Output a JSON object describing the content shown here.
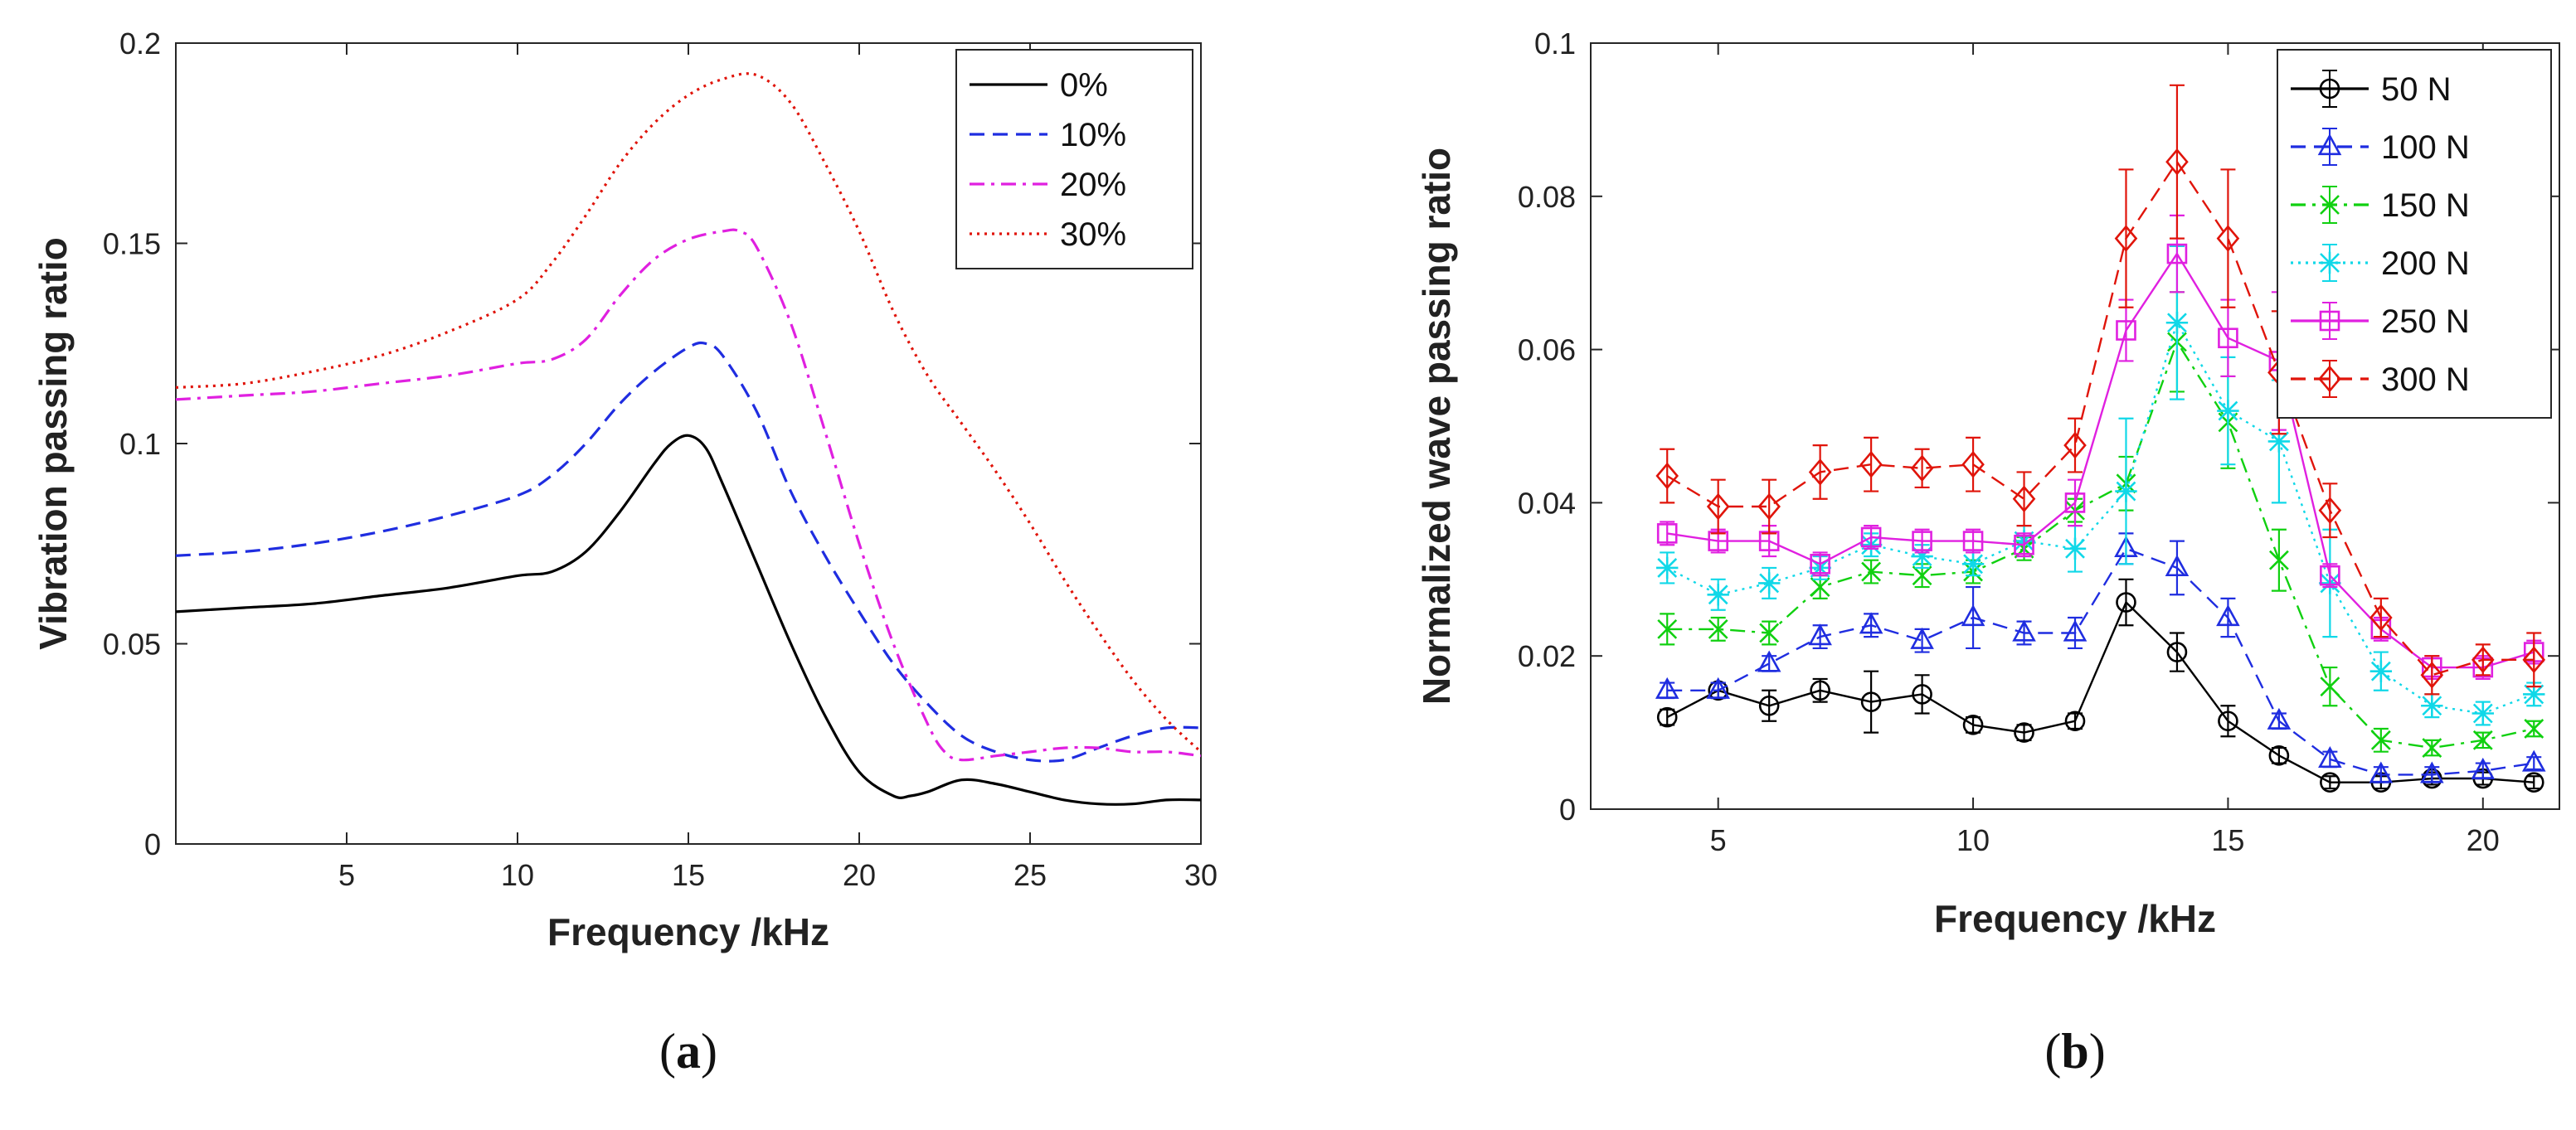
{
  "chart_data": [
    {
      "type": "line",
      "panel_label": "a",
      "title": "",
      "xlabel": "Frequency /kHz",
      "ylabel": "Vibration passing ratio",
      "xlim": [
        0,
        30
      ],
      "ylim": [
        0,
        0.2
      ],
      "xticks": [
        "5",
        "10",
        "15",
        "20",
        "25",
        "30"
      ],
      "yticks": [
        "0",
        "0.05",
        "0.1",
        "0.15",
        "0.2"
      ],
      "grid": false,
      "legend_position": "top-right",
      "series": [
        {
          "name": "0%",
          "color": "#000000",
          "style": "solid",
          "x": [
            0,
            2,
            4,
            6,
            8,
            10,
            11,
            12,
            13,
            14,
            14.5,
            15,
            15.5,
            16,
            17,
            18,
            19,
            20,
            21,
            21.5,
            22,
            23,
            24,
            25,
            26,
            27,
            28,
            29,
            30
          ],
          "y": [
            0.058,
            0.059,
            0.06,
            0.062,
            0.064,
            0.067,
            0.068,
            0.073,
            0.083,
            0.095,
            0.1,
            0.102,
            0.099,
            0.09,
            0.07,
            0.05,
            0.032,
            0.018,
            0.012,
            0.012,
            0.013,
            0.016,
            0.015,
            0.013,
            0.011,
            0.01,
            0.01,
            0.011,
            0.011
          ]
        },
        {
          "name": "10%",
          "color": "#1f2de0",
          "style": "dashed",
          "x": [
            0,
            2,
            4,
            6,
            8,
            10,
            11,
            12,
            13,
            14,
            15,
            15.5,
            16,
            17,
            18,
            19,
            20,
            21,
            22,
            23,
            24,
            25,
            26,
            27,
            28,
            29,
            30
          ],
          "y": [
            0.072,
            0.073,
            0.075,
            0.078,
            0.082,
            0.087,
            0.092,
            0.1,
            0.11,
            0.118,
            0.124,
            0.125,
            0.122,
            0.108,
            0.088,
            0.072,
            0.058,
            0.045,
            0.035,
            0.027,
            0.023,
            0.021,
            0.021,
            0.024,
            0.027,
            0.029,
            0.029
          ]
        },
        {
          "name": "20%",
          "color": "#e020e0",
          "style": "dashdot",
          "x": [
            0,
            2,
            4,
            6,
            8,
            10,
            11,
            12,
            13,
            14,
            15,
            16,
            16.5,
            17,
            18,
            19,
            20,
            21,
            22,
            22.5,
            23,
            24,
            25,
            26,
            27,
            28,
            29,
            30
          ],
          "y": [
            0.111,
            0.112,
            0.113,
            0.115,
            0.117,
            0.12,
            0.121,
            0.126,
            0.137,
            0.146,
            0.151,
            0.153,
            0.153,
            0.149,
            0.13,
            0.103,
            0.075,
            0.05,
            0.03,
            0.023,
            0.021,
            0.022,
            0.023,
            0.024,
            0.024,
            0.023,
            0.023,
            0.022
          ]
        },
        {
          "name": "30%",
          "color": "#e0140a",
          "style": "dotted",
          "x": [
            0,
            2,
            4,
            6,
            8,
            10,
            11,
            12,
            13,
            14,
            15,
            16,
            17,
            18,
            19,
            20,
            21,
            22,
            23,
            24,
            25,
            26,
            27,
            28,
            29,
            30
          ],
          "y": [
            0.114,
            0.115,
            0.118,
            0.122,
            0.128,
            0.136,
            0.145,
            0.157,
            0.17,
            0.18,
            0.187,
            0.191,
            0.192,
            0.185,
            0.17,
            0.153,
            0.133,
            0.117,
            0.105,
            0.093,
            0.08,
            0.066,
            0.053,
            0.041,
            0.031,
            0.023
          ]
        }
      ]
    },
    {
      "type": "line",
      "panel_label": "b",
      "title": "",
      "xlabel": "Frequency /kHz",
      "ylabel": "Normalized wave passing ratio",
      "xlim": [
        2.5,
        21.5
      ],
      "ylim": [
        0,
        0.1
      ],
      "xticks": [
        "5",
        "10",
        "15",
        "20"
      ],
      "yticks": [
        "0",
        "0.02",
        "0.04",
        "0.06",
        "0.08",
        "0.1"
      ],
      "grid": false,
      "legend_position": "top-right",
      "x": [
        4,
        5,
        6,
        7,
        8,
        9,
        10,
        11,
        12,
        13,
        14,
        15,
        16,
        17,
        18,
        19,
        20,
        21
      ],
      "series": [
        {
          "name": "50 N",
          "color": "#000000",
          "style": "solid",
          "marker": "circle",
          "values": [
            0.012,
            0.0155,
            0.0135,
            0.0155,
            0.014,
            0.015,
            0.011,
            0.01,
            0.0115,
            0.027,
            0.0205,
            0.0115,
            0.007,
            0.0035,
            0.0035,
            0.004,
            0.004,
            0.0035
          ],
          "errors": [
            0.001,
            0.001,
            0.002,
            0.0015,
            0.004,
            0.0025,
            0.001,
            0.001,
            0.001,
            0.003,
            0.0025,
            0.002,
            0.001,
            0.0008,
            0.0008,
            0.0008,
            0.0008,
            0.0008
          ]
        },
        {
          "name": "100 N",
          "color": "#1f2de0",
          "style": "dashed",
          "marker": "triangle",
          "values": [
            0.0155,
            0.0155,
            0.019,
            0.0225,
            0.024,
            0.022,
            0.025,
            0.023,
            0.023,
            0.034,
            0.0315,
            0.025,
            0.0115,
            0.0065,
            0.0045,
            0.0045,
            0.005,
            0.006
          ],
          "errors": [
            0.001,
            0.001,
            0.001,
            0.0015,
            0.0015,
            0.0015,
            0.004,
            0.0015,
            0.002,
            0.002,
            0.0035,
            0.0025,
            0.001,
            0.001,
            0.001,
            0.001,
            0.001,
            0.0008
          ]
        },
        {
          "name": "150 N",
          "color": "#10d010",
          "style": "dashdot",
          "marker": "x",
          "values": [
            0.0235,
            0.0235,
            0.023,
            0.029,
            0.031,
            0.0305,
            0.031,
            0.034,
            0.039,
            0.0425,
            0.061,
            0.0505,
            0.0325,
            0.016,
            0.009,
            0.008,
            0.009,
            0.0105
          ],
          "errors": [
            0.002,
            0.0015,
            0.0015,
            0.0015,
            0.0015,
            0.0015,
            0.0015,
            0.0015,
            0.0015,
            0.0035,
            0.0065,
            0.006,
            0.004,
            0.0025,
            0.0015,
            0.001,
            0.001,
            0.001
          ]
        },
        {
          "name": "200 N",
          "color": "#10d8e8",
          "style": "dotted",
          "marker": "star",
          "values": [
            0.0315,
            0.028,
            0.0295,
            0.0315,
            0.0345,
            0.033,
            0.032,
            0.035,
            0.034,
            0.0415,
            0.0635,
            0.052,
            0.048,
            0.0295,
            0.018,
            0.0135,
            0.0125,
            0.015
          ],
          "errors": [
            0.002,
            0.002,
            0.002,
            0.0015,
            0.0015,
            0.0015,
            0.0015,
            0.002,
            0.003,
            0.0095,
            0.01,
            0.007,
            0.008,
            0.007,
            0.0025,
            0.0015,
            0.0015,
            0.0015
          ]
        },
        {
          "name": "250 N",
          "color": "#e020e0",
          "style": "solid",
          "marker": "square",
          "values": [
            0.036,
            0.035,
            0.035,
            0.032,
            0.0355,
            0.035,
            0.035,
            0.0345,
            0.04,
            0.0625,
            0.0725,
            0.0615,
            0.0585,
            0.0305,
            0.0235,
            0.0185,
            0.0185,
            0.0205
          ],
          "errors": [
            0.0015,
            0.0015,
            0.002,
            0.0015,
            0.0015,
            0.0015,
            0.0015,
            0.0015,
            0.003,
            0.004,
            0.005,
            0.005,
            0.009,
            0.0015,
            0.0015,
            0.0015,
            0.0015,
            0.0015
          ]
        },
        {
          "name": "300 N",
          "color": "#e0140a",
          "style": "dashed",
          "marker": "diamond",
          "values": [
            0.0435,
            0.0395,
            0.0395,
            0.044,
            0.045,
            0.0445,
            0.045,
            0.0405,
            0.0475,
            0.0745,
            0.0845,
            0.0745,
            0.057,
            0.039,
            0.025,
            0.0175,
            0.0195,
            0.0195
          ],
          "errors": [
            0.0035,
            0.0035,
            0.0035,
            0.0035,
            0.0035,
            0.0025,
            0.0035,
            0.0035,
            0.0035,
            0.009,
            0.01,
            0.009,
            0.008,
            0.0035,
            0.0025,
            0.0025,
            0.002,
            0.0035
          ]
        }
      ]
    }
  ]
}
